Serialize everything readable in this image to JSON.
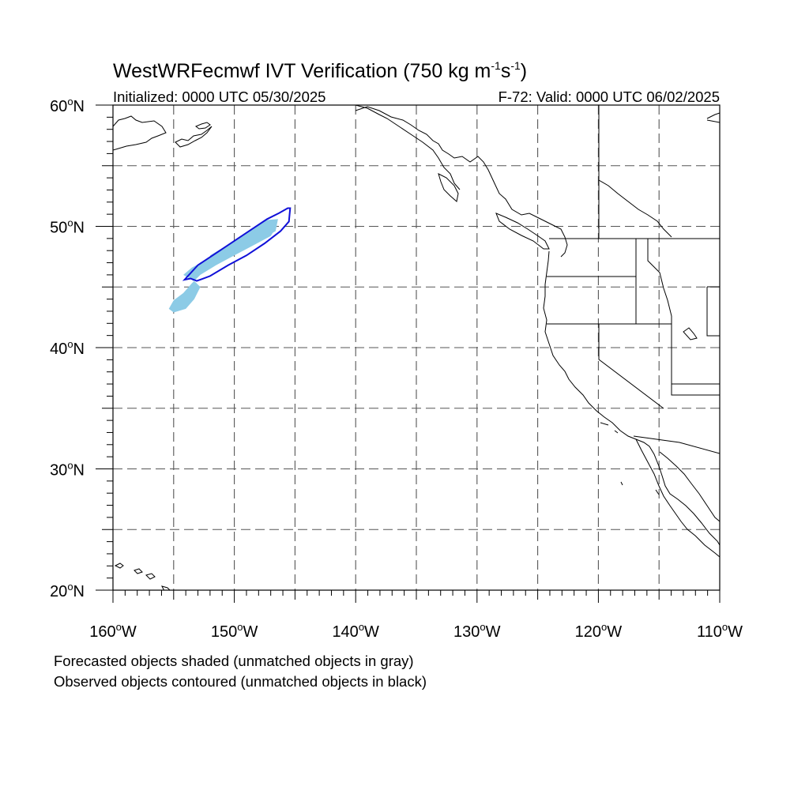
{
  "title": {
    "main": "WestWRFecmwf IVT Verification (750 kg m",
    "sup1": "-1",
    "mid": "s",
    "sup2": "-1",
    "end": ")"
  },
  "subtitle": {
    "left": "Initialized: 0000 UTC 05/30/2025",
    "right": "F-72: Valid: 0000 UTC 06/02/2025"
  },
  "caption": {
    "line1": "Forecasted objects shaded (unmatched objects in gray)",
    "line2": "Observed objects contoured (unmatched objects in black)"
  },
  "map": {
    "lon_range": [
      -160,
      -110
    ],
    "lat_range": [
      20,
      60
    ],
    "lon_labels": [
      {
        "lon": -160,
        "text": "160°W"
      },
      {
        "lon": -150,
        "text": "150°W"
      },
      {
        "lon": -140,
        "text": "140°W"
      },
      {
        "lon": -130,
        "text": "130°W"
      },
      {
        "lon": -120,
        "text": "120°W"
      },
      {
        "lon": -110,
        "text": "110°W"
      }
    ],
    "lat_labels": [
      {
        "lat": 60,
        "text": "60°N"
      },
      {
        "lat": 50,
        "text": "50°N"
      },
      {
        "lat": 40,
        "text": "40°N"
      },
      {
        "lat": 30,
        "text": "30°N"
      },
      {
        "lat": 20,
        "text": "20°N"
      }
    ],
    "gridlines_lon": [
      -155,
      -150,
      -145,
      -140,
      -135,
      -130,
      -125,
      -120,
      -115
    ],
    "gridlines_lat": [
      25,
      30,
      35,
      40,
      45,
      50,
      55
    ],
    "colors": {
      "forecast_fill": "#8ccbe6",
      "observed_contour": "#1010d8",
      "coastline": "#000000",
      "grid": "#555555"
    },
    "forecast_object": [
      [
        -154.2,
        46.0
      ],
      [
        -153.5,
        46.6
      ],
      [
        -152.0,
        47.4
      ],
      [
        -150.5,
        48.2
      ],
      [
        -149.0,
        49.0
      ],
      [
        -147.8,
        49.7
      ],
      [
        -146.8,
        50.2
      ],
      [
        -146.5,
        50.0
      ],
      [
        -147.0,
        49.2
      ],
      [
        -148.5,
        48.4
      ],
      [
        -150.0,
        47.6
      ],
      [
        -151.5,
        46.8
      ],
      [
        -152.8,
        46.0
      ],
      [
        -153.5,
        45.3
      ],
      [
        -154.2,
        44.5
      ],
      [
        -155.0,
        43.9
      ],
      [
        -155.4,
        43.2
      ],
      [
        -155.0,
        42.9
      ],
      [
        -154.0,
        43.2
      ],
      [
        -153.3,
        44.0
      ],
      [
        -152.8,
        45.0
      ],
      [
        -153.2,
        45.4
      ]
    ],
    "forecast_object_upper": [
      [
        -152.0,
        47.6
      ],
      [
        -150.0,
        48.8
      ],
      [
        -148.5,
        49.8
      ],
      [
        -147.5,
        50.5
      ],
      [
        -146.4,
        50.6
      ],
      [
        -146.6,
        49.6
      ],
      [
        -148.0,
        48.8
      ],
      [
        -150.0,
        47.8
      ],
      [
        -151.8,
        46.9
      ]
    ],
    "observed_contour": [
      [
        -154.1,
        45.6
      ],
      [
        -153.0,
        46.8
      ],
      [
        -151.5,
        47.8
      ],
      [
        -150.0,
        48.8
      ],
      [
        -148.5,
        49.8
      ],
      [
        -147.3,
        50.6
      ],
      [
        -146.3,
        51.1
      ],
      [
        -145.6,
        51.5
      ],
      [
        -145.4,
        51.5
      ],
      [
        -145.5,
        50.4
      ],
      [
        -146.2,
        49.6
      ],
      [
        -147.5,
        48.6
      ],
      [
        -149.0,
        47.6
      ],
      [
        -150.5,
        46.8
      ],
      [
        -152.0,
        45.9
      ],
      [
        -153.1,
        45.5
      ],
      [
        -153.6,
        45.7
      ]
    ]
  }
}
